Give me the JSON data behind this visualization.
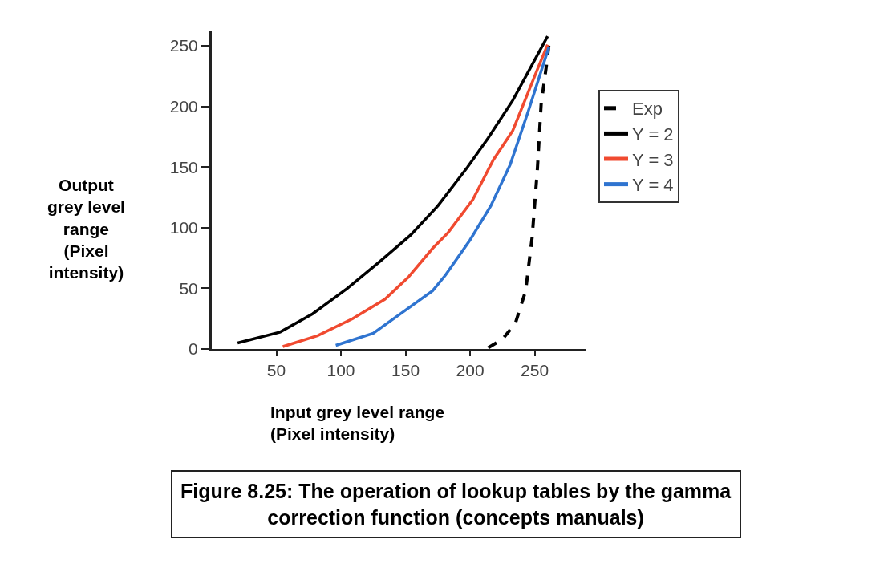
{
  "chart_data": {
    "type": "line",
    "xlabel": "Input grey level range\n(Pixel intensity)",
    "ylabel": "Output\ngrey level\nrange\n(Pixel\nintensity)",
    "annotations": [
      "Figure 8.25: The operation of lookup tables by the gamma\ncorrection function (concepts manuals)"
    ],
    "xlim": [
      0,
      290
    ],
    "ylim": [
      0,
      262
    ],
    "xticks": [
      50,
      100,
      150,
      200,
      250
    ],
    "yticks": [
      0,
      50,
      100,
      150,
      200,
      250
    ],
    "legend": "right",
    "marker": "none",
    "series": [
      {
        "name": "Exp",
        "color": "#000000",
        "line_style": "dashed",
        "x": [
          214,
          225,
          235,
          243,
          248,
          252,
          255,
          259,
          261
        ],
        "values": [
          1,
          8,
          21,
          48,
          92,
          147,
          202,
          233,
          251
        ]
      },
      {
        "name": "Y = 2",
        "color": "#000000",
        "line_style": "solid",
        "x": [
          20,
          53,
          78,
          105,
          130,
          154,
          175,
          198,
          214,
          233,
          260
        ],
        "values": [
          5,
          14,
          29,
          50,
          72,
          94,
          118,
          150,
          174,
          205,
          258
        ]
      },
      {
        "name": "Y = 3",
        "color": "#f04a30",
        "line_style": "solid",
        "x": [
          55,
          82,
          109,
          134,
          152,
          171,
          183,
          202,
          218,
          233,
          253,
          260
        ],
        "values": [
          2,
          11,
          25,
          41,
          59,
          83,
          96,
          123,
          156,
          180,
          233,
          251
        ]
      },
      {
        "name": "Y = 4",
        "color": "#2f74d0",
        "line_style": "solid",
        "x": [
          96,
          125,
          150,
          171,
          181,
          200,
          216,
          231,
          245,
          261
        ],
        "values": [
          3,
          13,
          32,
          48,
          61,
          90,
          118,
          152,
          196,
          249
        ]
      }
    ]
  }
}
